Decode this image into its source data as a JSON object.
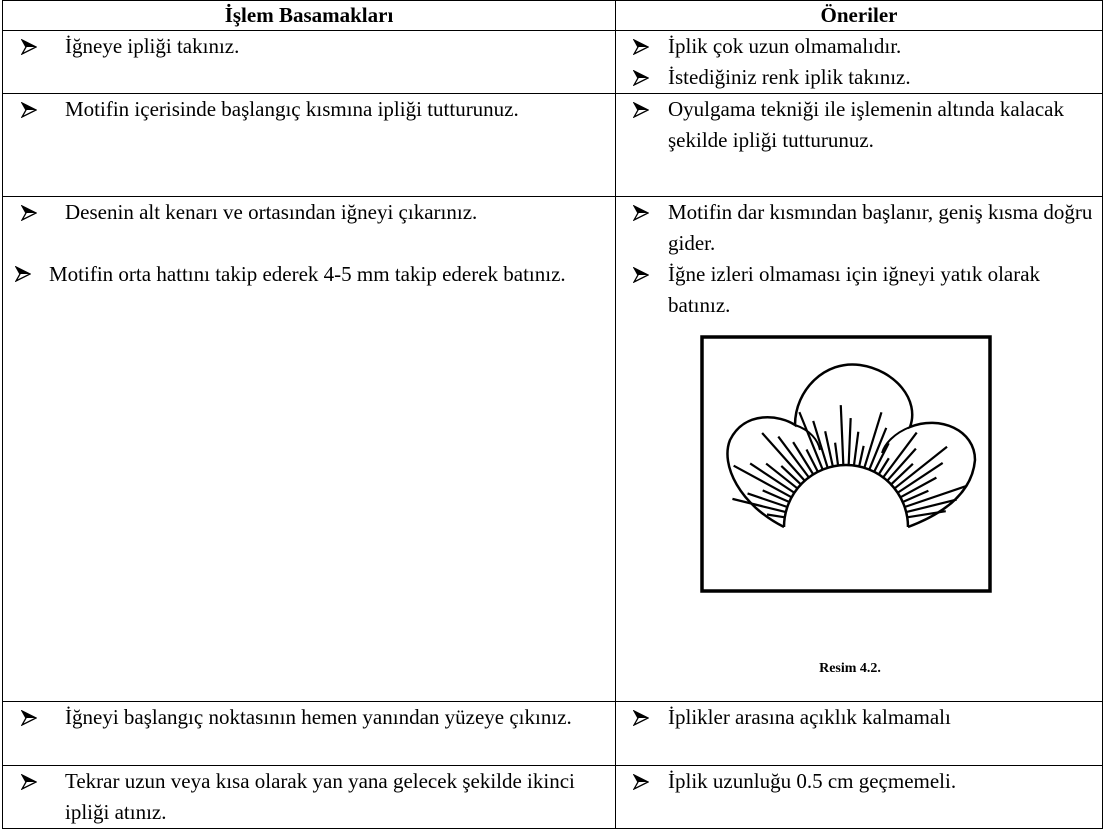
{
  "table": {
    "header": [
      "İşlem Basamakları",
      "Öneriler"
    ],
    "rows": [
      {
        "left": [
          "İğneye ipliği takınız."
        ],
        "right": [
          "İplik çok uzun olmamalıdır.",
          "İstediğiniz renk iplik takınız."
        ]
      },
      {
        "left": [
          "Motifin içerisinde başlangıç kısmına ipliği tutturunuz."
        ],
        "right": [
          "Oyulgama tekniği ile işlemenin altında kalacak şekilde ipliği tutturunuz."
        ]
      },
      {
        "left": [
          "Desenin alt kenarı ve ortasından iğneyi çıkarınız.",
          "Motifin orta hattını takip ederek 4-5 mm takip ederek batınız."
        ],
        "right": [
          "Motifin dar kısmından başlanır, geniş kısma doğru gider.",
          "İğne izleri olmaması için iğneyi yatık olarak batınız."
        ],
        "figure_caption": "Resim 4.2."
      },
      {
        "left": [
          "İğneyi başlangıç noktasının hemen yanından yüzeye çıkınız."
        ],
        "right": [
          "İplikler arasına açıklık kalmamalı"
        ]
      },
      {
        "left": [
          "Tekrar uzun veya kısa olarak yan yana gelecek şekilde ikinci ipliği atınız."
        ],
        "right": [
          "İplik  uzunluğu 0.5 cm geçmemeli."
        ]
      }
    ]
  }
}
